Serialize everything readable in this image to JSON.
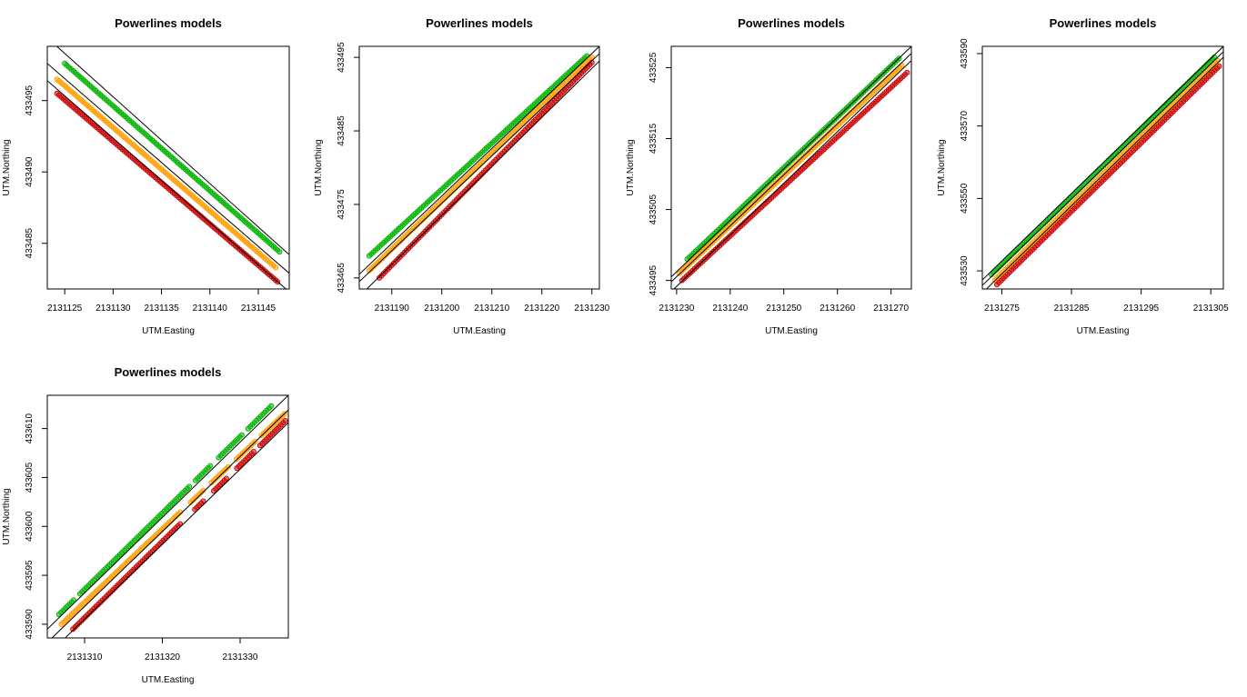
{
  "colors": {
    "green": "#00b400",
    "orange": "#ff9e00",
    "red": "#cc0000",
    "line": "#000000"
  },
  "chart_data": [
    {
      "type": "scatter",
      "title": "Powerlines models",
      "xlabel": "UTM.Easting",
      "ylabel": "UTM.Northing",
      "xlim": [
        2131123.2,
        2131148.2
      ],
      "ylim": [
        433481.8,
        433498.8
      ],
      "xticks": [
        2131125,
        2131130,
        2131135,
        2131140,
        2131145
      ],
      "yticks": [
        433485,
        433490,
        433495
      ],
      "series": [
        {
          "color": "green",
          "x": [
            2131125,
            2131147.2
          ],
          "y": [
            433497.6,
            433484.4
          ]
        },
        {
          "color": "orange",
          "x": [
            2131124.2,
            2131146.8
          ],
          "y": [
            433496.5,
            433483.3
          ]
        },
        {
          "color": "red",
          "x": [
            2131124.2,
            2131147
          ],
          "y": [
            433495.5,
            433482.3
          ]
        }
      ],
      "lines": [
        {
          "x": [
            2131123.2,
            2131148.2
          ],
          "y": [
            433499.4,
            433484.2
          ]
        },
        {
          "x": [
            2131123.2,
            2131148.2
          ],
          "y": [
            433497.6,
            433482.9
          ]
        },
        {
          "x": [
            2131123.2,
            2131148.2
          ],
          "y": [
            433496.4,
            433481.6
          ]
        }
      ]
    },
    {
      "type": "scatter",
      "title": "Powerlines models",
      "xlabel": "UTM.Easting",
      "ylabel": "UTM.Northing",
      "xlim": [
        2131183.5,
        2131231.5
      ],
      "ylim": [
        433463.5,
        433496.5
      ],
      "xticks": [
        2131190,
        2131200,
        2131210,
        2131220,
        2131230
      ],
      "yticks": [
        433465,
        433475,
        433485,
        433495
      ],
      "series": [
        {
          "color": "green",
          "x": [
            2131185.5,
            2131229
          ],
          "y": [
            433468,
            433495.2
          ]
        },
        {
          "color": "orange",
          "x": [
            2131185.5,
            2131230
          ],
          "y": [
            433466,
            433495
          ]
        },
        {
          "color": "red",
          "x": [
            2131187.5,
            2131230
          ],
          "y": [
            433465,
            433494.3
          ]
        }
      ],
      "lines": [
        {
          "x": [
            2131183.5,
            2131231.5
          ],
          "y": [
            433465.5,
            433496.5
          ]
        },
        {
          "x": [
            2131183.5,
            2131231.5
          ],
          "y": [
            433464.5,
            433495.5
          ]
        },
        {
          "x": [
            2131185,
            2131231.5
          ],
          "y": [
            433463.5,
            433494.5
          ]
        }
      ]
    },
    {
      "type": "scatter",
      "title": "Powerlines models",
      "xlabel": "UTM.Easting",
      "ylabel": "UTM.Northing",
      "xlim": [
        2131229,
        2131273.8
      ],
      "ylim": [
        433493.8,
        433528
      ],
      "xticks": [
        2131230,
        2131240,
        2131250,
        2131260,
        2131270
      ],
      "yticks": [
        433495,
        433505,
        433515,
        433525
      ],
      "series": [
        {
          "color": "green",
          "x": [
            2131232,
            2131271.5
          ],
          "y": [
            433498,
            433526.3
          ]
        },
        {
          "color": "orange",
          "x": [
            2131230.5,
            2131272
          ],
          "y": [
            433496,
            433525.3
          ]
        },
        {
          "color": "red",
          "x": [
            2131231,
            2131273
          ],
          "y": [
            433495,
            433524.3
          ]
        }
      ],
      "lines": [
        {
          "x": [
            2131229,
            2131273.8
          ],
          "y": [
            433495.5,
            433528
          ]
        },
        {
          "x": [
            2131229,
            2131273.8
          ],
          "y": [
            433494.8,
            433527
          ]
        },
        {
          "x": [
            2131229.5,
            2131273.8
          ],
          "y": [
            433493.8,
            433526
          ]
        }
      ]
    },
    {
      "type": "scatter",
      "title": "Powerlines models",
      "xlabel": "UTM.Easting",
      "ylabel": "UTM.Northing",
      "xlim": [
        2131272.2,
        2131306.8
      ],
      "ylim": [
        433525,
        433592
      ],
      "xticks": [
        2131275,
        2131285,
        2131295,
        2131305
      ],
      "yticks": [
        433530,
        433550,
        433570,
        433590
      ],
      "series": [
        {
          "color": "green",
          "x": [
            2131273.5,
            2131305.5
          ],
          "y": [
            433529,
            433589
          ]
        },
        {
          "color": "orange",
          "x": [
            2131274,
            2131306
          ],
          "y": [
            433527.5,
            433588
          ]
        },
        {
          "color": "red",
          "x": [
            2131274.3,
            2131306.2
          ],
          "y": [
            433526.2,
            433586.5
          ]
        }
      ],
      "lines": [
        {
          "x": [
            2131272.2,
            2131306.8
          ],
          "y": [
            433527.5,
            433592
          ]
        },
        {
          "x": [
            2131272.2,
            2131306.8
          ],
          "y": [
            433526,
            433590.5
          ]
        },
        {
          "x": [
            2131272.8,
            2131306.8
          ],
          "y": [
            433525,
            433589
          ]
        }
      ]
    },
    {
      "type": "scatter",
      "title": "Powerlines models",
      "xlabel": "UTM.Easting",
      "ylabel": "UTM.Northing",
      "xlim": [
        2131305.2,
        2131336.2
      ],
      "ylim": [
        433588.6,
        433613.4
      ],
      "xticks": [
        2131310,
        2131320,
        2131330
      ],
      "yticks": [
        433590,
        433595,
        433600,
        433605,
        433610
      ],
      "series": [
        {
          "color": "green",
          "x": [
            2131306.7,
            2131334
          ],
          "y": [
            433591,
            433612.3
          ],
          "gaps": [
            [
              2131308.7,
              2131309.3
            ],
            [
              2131323.5,
              2131324
            ],
            [
              2131326.3,
              2131327
            ],
            [
              2131330.3,
              2131331
            ]
          ]
        },
        {
          "color": "orange",
          "x": [
            2131307,
            2131335.7
          ],
          "y": [
            433590,
            433611.5
          ],
          "gaps": [
            [
              2131322.5,
              2131323.5
            ],
            [
              2131325.3,
              2131326.3
            ],
            [
              2131328.5,
              2131329.5
            ],
            [
              2131332,
              2131332.5
            ]
          ]
        },
        {
          "color": "red",
          "x": [
            2131308.5,
            2131335.8
          ],
          "y": [
            433589.5,
            433610.8
          ],
          "gaps": [
            [
              2131322.5,
              2131324
            ],
            [
              2131325.5,
              2131326.5
            ],
            [
              2131328.5,
              2131329.5
            ],
            [
              2131332,
              2131332.5
            ]
          ]
        }
      ],
      "lines": [
        {
          "x": [
            2131305.2,
            2131336.2
          ],
          "y": [
            433589.5,
            433613.4
          ]
        },
        {
          "x": [
            2131305.8,
            2131336.2
          ],
          "y": [
            433588.6,
            433611.9
          ]
        },
        {
          "x": [
            2131307.5,
            2131336.2
          ],
          "y": [
            433588.6,
            433610.6
          ]
        }
      ]
    }
  ]
}
